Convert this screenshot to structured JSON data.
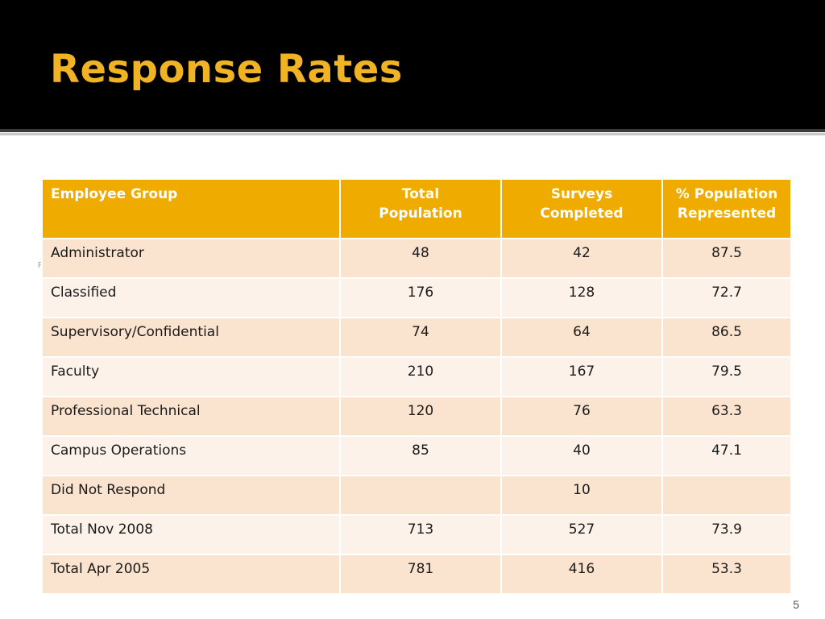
{
  "slide": {
    "title": "Response Rates",
    "page_number": "5",
    "stray_mark": "F"
  },
  "table": {
    "headers": [
      "Employee Group",
      "Total\nPopulation",
      "Surveys Completed",
      "% Population\nRepresented"
    ],
    "rows": [
      [
        "Administrator",
        "48",
        "42",
        "87.5"
      ],
      [
        "Classified",
        "176",
        "128",
        "72.7"
      ],
      [
        "Supervisory/Confidential",
        "74",
        "64",
        "86.5"
      ],
      [
        "Faculty",
        "210",
        "167",
        "79.5"
      ],
      [
        "Professional Technical",
        "120",
        "76",
        "63.3"
      ],
      [
        "Campus Operations",
        "85",
        "40",
        "47.1"
      ],
      [
        "Did Not Respond",
        "",
        "10",
        ""
      ],
      [
        "Total Nov 2008",
        "713",
        "527",
        "73.9"
      ],
      [
        "Total Apr 2005",
        "781",
        "416",
        "53.3"
      ]
    ]
  },
  "colors": {
    "header_bar": "#000000",
    "title": "#f0b323",
    "table_header": "#f0ab00",
    "row_odd": "#fae3cf",
    "row_even": "#fdf2ea"
  }
}
